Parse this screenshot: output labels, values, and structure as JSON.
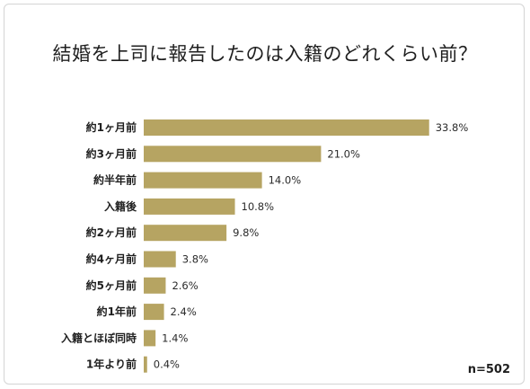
{
  "chart_data": {
    "type": "bar",
    "orientation": "horizontal",
    "title": "結婚を上司に報告したのは入籍のどれくらい前？",
    "categories": [
      "約1ヶ月前",
      "約3ヶ月前",
      "約半年前",
      "入籍後",
      "約2ヶ月前",
      "約4ヶ月前",
      "約5ヶ月前",
      "約1年前",
      "入籍とほぼ同時",
      "1年より前"
    ],
    "values": [
      33.8,
      21.0,
      14.0,
      10.8,
      9.8,
      3.8,
      2.6,
      2.4,
      1.4,
      0.4
    ],
    "value_labels": [
      "33.8%",
      "21.0%",
      "14.0%",
      "10.8%",
      "9.8%",
      "3.8%",
      "2.6%",
      "2.4%",
      "1.4%",
      "0.4%"
    ],
    "unit": "%",
    "bar_color": "#b6a462",
    "note": "n=502",
    "grid": false
  }
}
